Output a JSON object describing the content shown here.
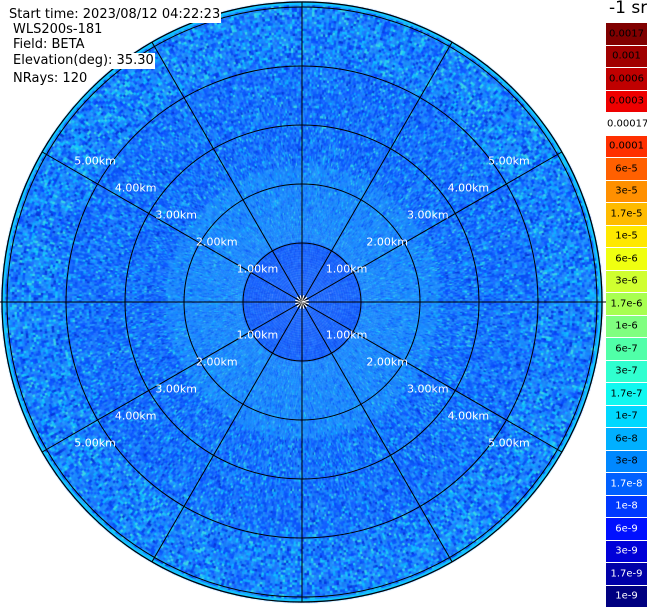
{
  "header": {
    "start_time": "Start time: 2023/08/12 04:22:23",
    "instrument": "WLS200s-181",
    "field": "Field: BETA",
    "elevation": "Elevation(deg): 35.30",
    "nrays": "NRays: 120"
  },
  "rings": {
    "labels": [
      "1.00km",
      "2.00km",
      "3.00km",
      "4.00km",
      "5.00km"
    ]
  },
  "colorbar": {
    "unit": "-1 sr",
    "levels": [
      {
        "label": "0.0017",
        "color": "#800000",
        "text_color": "#000000"
      },
      {
        "label": "0.001",
        "color": "#a00000",
        "text_color": "#000000"
      },
      {
        "label": "0.0006",
        "color": "#c00000",
        "text_color": "#000000"
      },
      {
        "label": "0.0003",
        "color": "#ee0000",
        "text_color": "#000000"
      },
      {
        "label": "0.00017",
        "color": "#ffffff",
        "text_color": "#000000"
      },
      {
        "label": "0.0001",
        "color": "#ff3000",
        "text_color": "#000000"
      },
      {
        "label": "6e-5",
        "color": "#ff6000",
        "text_color": "#000000"
      },
      {
        "label": "3e-5",
        "color": "#ff9000",
        "text_color": "#000000"
      },
      {
        "label": "1.7e-5",
        "color": "#ffbb00",
        "text_color": "#000000"
      },
      {
        "label": "1e-5",
        "color": "#ffe800",
        "text_color": "#000000"
      },
      {
        "label": "6e-6",
        "color": "#f0ff10",
        "text_color": "#000000"
      },
      {
        "label": "3e-6",
        "color": "#d0ff30",
        "text_color": "#000000"
      },
      {
        "label": "1.7e-6",
        "color": "#a8ff50",
        "text_color": "#000000"
      },
      {
        "label": "1e-6",
        "color": "#80ff80",
        "text_color": "#000000"
      },
      {
        "label": "6e-7",
        "color": "#50ffa8",
        "text_color": "#000000"
      },
      {
        "label": "3e-7",
        "color": "#30ffd0",
        "text_color": "#000000"
      },
      {
        "label": "1.7e-7",
        "color": "#10f8f0",
        "text_color": "#000000"
      },
      {
        "label": "1e-7",
        "color": "#00d8ff",
        "text_color": "#000000"
      },
      {
        "label": "6e-8",
        "color": "#00b0ff",
        "text_color": "#000000"
      },
      {
        "label": "3e-8",
        "color": "#0088ff",
        "text_color": "#000000"
      },
      {
        "label": "1.7e-8",
        "color": "#0060ff",
        "text_color": "#ffffff"
      },
      {
        "label": "1e-8",
        "color": "#0038ff",
        "text_color": "#ffffff"
      },
      {
        "label": "6e-9",
        "color": "#0010ff",
        "text_color": "#ffffff"
      },
      {
        "label": "3e-9",
        "color": "#0000d8",
        "text_color": "#ffffff"
      },
      {
        "label": "1.7e-9",
        "color": "#0000a8",
        "text_color": "#ffffff"
      },
      {
        "label": "1e-9",
        "color": "#000080",
        "text_color": "#ffffff"
      }
    ]
  }
}
